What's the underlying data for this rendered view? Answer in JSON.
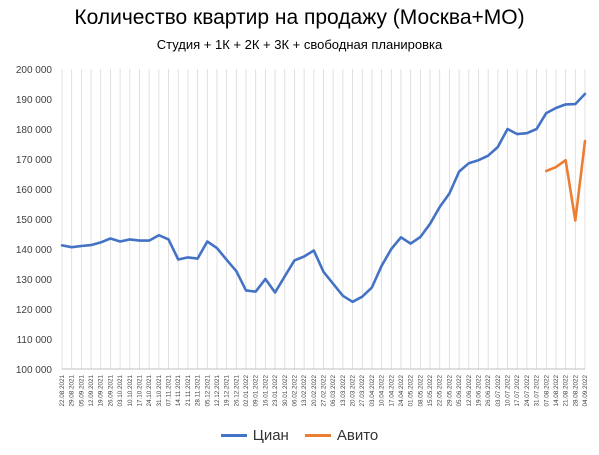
{
  "chart_data": {
    "type": "line",
    "title": "Количество квартир на продажу (Москва+МО)",
    "subtitle": "Студия + 1К + 2К + 3К + свободная планировка",
    "ylim": [
      100000,
      200000
    ],
    "yticks": [
      100000,
      110000,
      120000,
      130000,
      140000,
      150000,
      160000,
      170000,
      180000,
      190000,
      200000
    ],
    "ytick_labels": [
      "100 000",
      "110 000",
      "120 000",
      "130 000",
      "140 000",
      "150 000",
      "160 000",
      "170 000",
      "180 000",
      "190 000",
      "200 000"
    ],
    "grid": "vertical",
    "legend_position": "bottom",
    "x": [
      "22.08.2021",
      "29.08.2021",
      "05.09.2021",
      "12.09.2021",
      "19.09.2021",
      "26.09.2021",
      "03.10.2021",
      "10.10.2021",
      "17.10.2021",
      "24.10.2021",
      "31.10.2021",
      "07.11.2021",
      "14.11.2021",
      "21.11.2021",
      "28.11.2021",
      "05.12.2021",
      "12.12.2021",
      "19.12.2021",
      "26.12.2021",
      "02.01.2022",
      "09.01.2022",
      "16.01.2022",
      "23.01.2022",
      "30.01.2022",
      "06.02.2022",
      "13.02.2022",
      "20.02.2022",
      "27.02.2022",
      "06.03.2022",
      "13.03.2022",
      "20.03.2022",
      "27.03.2022",
      "03.04.2022",
      "10.04.2022",
      "17.04.2022",
      "24.04.2022",
      "01.05.2022",
      "08.05.2022",
      "15.05.2022",
      "22.05.2022",
      "29.05.2022",
      "05.06.2022",
      "12.06.2022",
      "19.06.2022",
      "26.06.2022",
      "03.07.2022",
      "10.07.2022",
      "17.07.2022",
      "24.07.2022",
      "31.07.2022",
      "07.08.2022",
      "14.08.2022",
      "21.08.2022",
      "28.08.2022",
      "04.09.2022"
    ],
    "series": [
      {
        "name": "Циан",
        "color": "#4472C4",
        "values": [
          141200,
          140600,
          141000,
          141300,
          142200,
          143500,
          142500,
          143200,
          142800,
          142800,
          144600,
          143200,
          136500,
          137200,
          136800,
          142500,
          140300,
          136400,
          132600,
          126200,
          125800,
          130000,
          125500,
          130900,
          136200,
          137500,
          139500,
          132400,
          128400,
          124400,
          122400,
          124100,
          127200,
          134400,
          140000,
          143900,
          141800,
          144000,
          148400,
          154000,
          158500,
          165800,
          168600,
          169600,
          171100,
          174000,
          180000,
          178300,
          178600,
          180000,
          185300,
          187000,
          188200,
          188300,
          191700
        ]
      },
      {
        "name": "Авито",
        "color": "#ED7D31",
        "values": [
          null,
          null,
          null,
          null,
          null,
          null,
          null,
          null,
          null,
          null,
          null,
          null,
          null,
          null,
          null,
          null,
          null,
          null,
          null,
          null,
          null,
          null,
          null,
          null,
          null,
          null,
          null,
          null,
          null,
          null,
          null,
          null,
          null,
          null,
          null,
          null,
          null,
          null,
          null,
          null,
          null,
          null,
          null,
          null,
          null,
          null,
          null,
          null,
          null,
          null,
          166000,
          167300,
          169600,
          149500,
          176000
        ]
      }
    ]
  }
}
